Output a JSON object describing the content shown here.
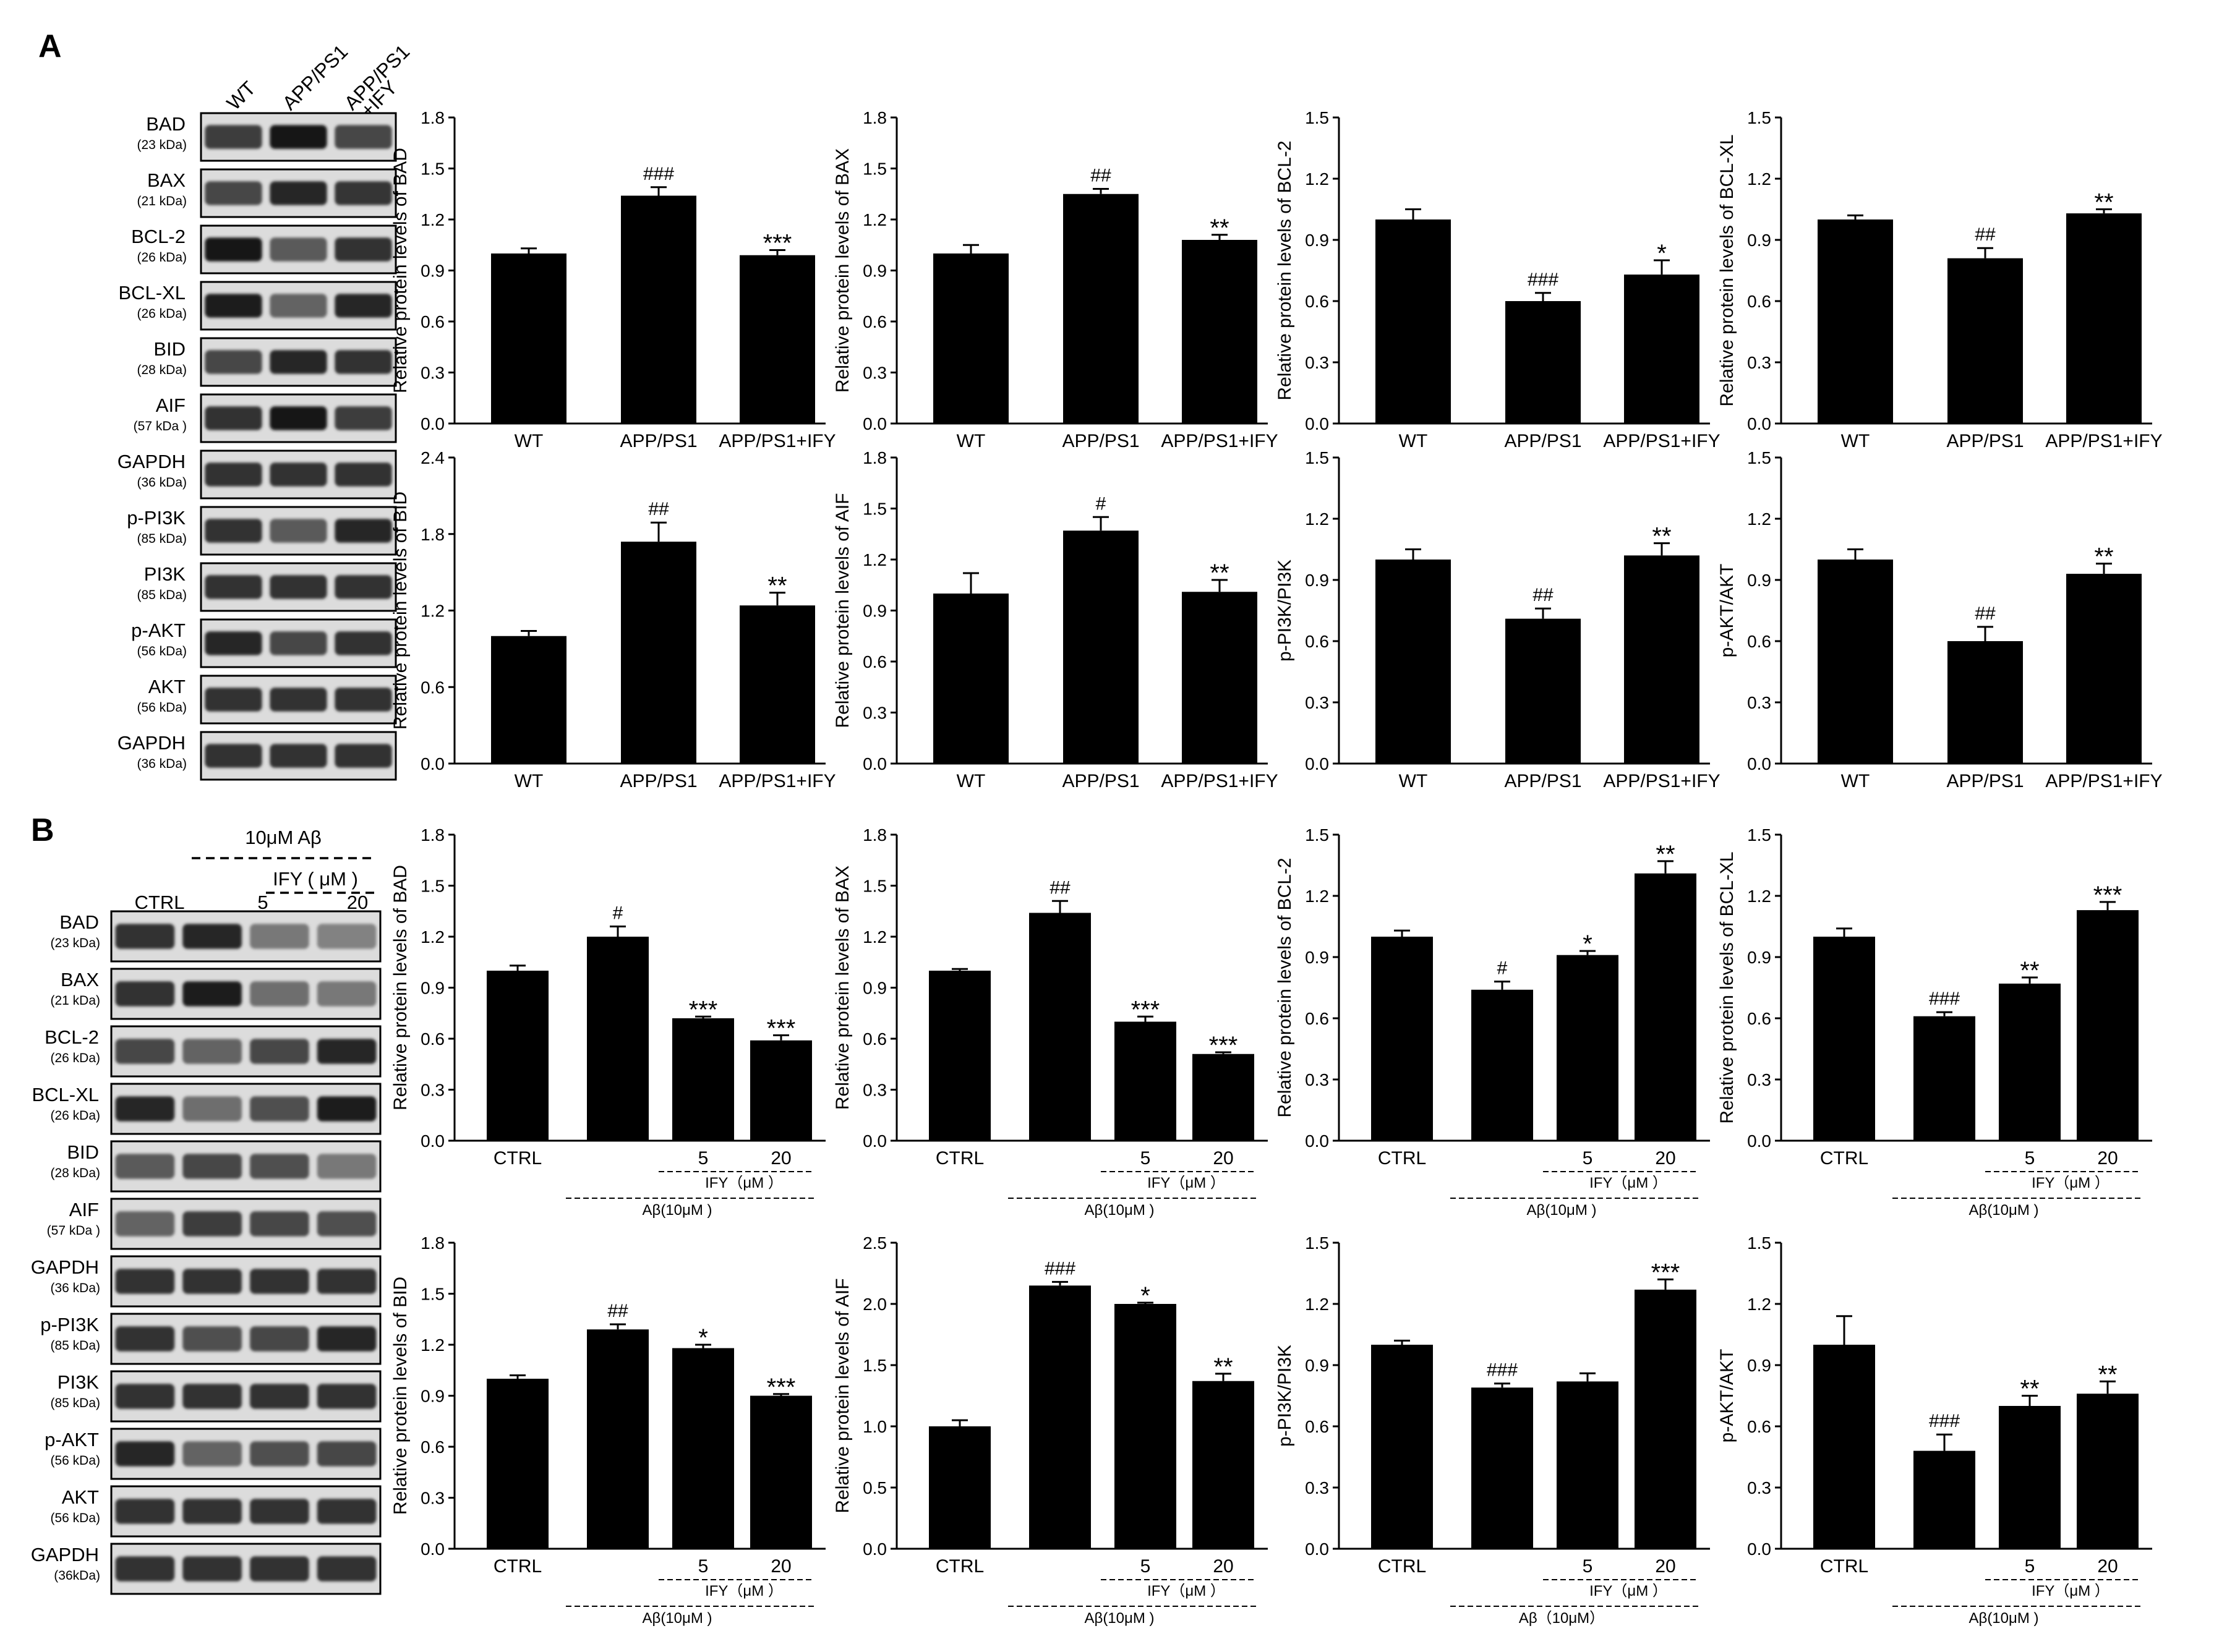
{
  "panels": {
    "A": {
      "letter": "A",
      "blot": {
        "lane_labels": [
          "WT",
          "APP/PS1",
          "APP/PS1\n+IFY"
        ],
        "rows": [
          {
            "name": "BAD",
            "kda": "(23 kDa)",
            "intensities": [
              0.75,
              0.95,
              0.7
            ]
          },
          {
            "name": "BAX",
            "kda": "(21 kDa)",
            "intensities": [
              0.7,
              0.85,
              0.78
            ]
          },
          {
            "name": "BCL-2",
            "kda": "(26 kDa)",
            "intensities": [
              0.95,
              0.6,
              0.8
            ]
          },
          {
            "name": "BCL-XL",
            "kda": "(26 kDa)",
            "intensities": [
              0.9,
              0.55,
              0.85
            ]
          },
          {
            "name": "BID",
            "kda": "(28 kDa)",
            "intensities": [
              0.7,
              0.85,
              0.8
            ]
          },
          {
            "name": "AIF",
            "kda": "(57 kDa )",
            "intensities": [
              0.8,
              0.95,
              0.75
            ]
          },
          {
            "name": "GAPDH",
            "kda": "(36 kDa)",
            "intensities": [
              0.8,
              0.8,
              0.8
            ]
          },
          {
            "name": "p-PI3K",
            "kda": "(85 kDa)",
            "intensities": [
              0.8,
              0.6,
              0.85
            ]
          },
          {
            "name": "PI3K",
            "kda": "(85 kDa)",
            "intensities": [
              0.8,
              0.8,
              0.8
            ]
          },
          {
            "name": "p-AKT",
            "kda": "(56 kDa)",
            "intensities": [
              0.85,
              0.7,
              0.8
            ]
          },
          {
            "name": "AKT",
            "kda": "(56 kDa)",
            "intensities": [
              0.8,
              0.8,
              0.8
            ]
          },
          {
            "name": "GAPDH",
            "kda": "(36 kDa)",
            "intensities": [
              0.8,
              0.8,
              0.8
            ]
          }
        ]
      }
    },
    "B": {
      "letter": "B",
      "blot": {
        "treatment_label": "10μM Aβ",
        "ify_label": "IFY ( μM )",
        "lane_labels": [
          "CTRL",
          "",
          "5",
          "20"
        ],
        "rows": [
          {
            "name": "BAD",
            "kda": "(23 kDa)",
            "intensities": [
              0.8,
              0.85,
              0.45,
              0.4
            ]
          },
          {
            "name": "BAX",
            "kda": "(21 kDa)",
            "intensities": [
              0.8,
              0.9,
              0.5,
              0.45
            ]
          },
          {
            "name": "BCL-2",
            "kda": "(26 kDa)",
            "intensities": [
              0.7,
              0.55,
              0.7,
              0.85
            ]
          },
          {
            "name": "BCL-XL",
            "kda": "(26 kDa)",
            "intensities": [
              0.85,
              0.5,
              0.65,
              0.9
            ]
          },
          {
            "name": "BID",
            "kda": "(28 kDa)",
            "intensities": [
              0.6,
              0.7,
              0.65,
              0.45
            ]
          },
          {
            "name": "AIF",
            "kda": "(57 kDa )",
            "intensities": [
              0.55,
              0.75,
              0.7,
              0.65
            ]
          },
          {
            "name": "GAPDH",
            "kda": "(36 kDa)",
            "intensities": [
              0.8,
              0.8,
              0.8,
              0.8
            ]
          },
          {
            "name": "p-PI3K",
            "kda": "(85 kDa)",
            "intensities": [
              0.8,
              0.65,
              0.7,
              0.85
            ]
          },
          {
            "name": "PI3K",
            "kda": "(85 kDa)",
            "intensities": [
              0.8,
              0.8,
              0.8,
              0.8
            ]
          },
          {
            "name": "p-AKT",
            "kda": "(56 kDa)",
            "intensities": [
              0.85,
              0.55,
              0.65,
              0.7
            ]
          },
          {
            "name": "AKT",
            "kda": "(56 kDa)",
            "intensities": [
              0.8,
              0.8,
              0.8,
              0.8
            ]
          },
          {
            "name": "GAPDH",
            "kda": "(36kDa)",
            "intensities": [
              0.8,
              0.8,
              0.8,
              0.8
            ]
          }
        ]
      }
    }
  },
  "chart_data": [
    {
      "panel": "A",
      "type": "bar",
      "categories": [
        "WT",
        "APP/PS1",
        "APP/PS1+IFY"
      ],
      "values": [
        1.0,
        1.34,
        0.99
      ],
      "errors": [
        0.03,
        0.05,
        0.03
      ],
      "annotations": [
        "",
        "###",
        "***"
      ],
      "ylabel": "Relative protein levels of BAD",
      "ylim": [
        0,
        1.8
      ],
      "ticks": [
        "0.0",
        "0.3",
        "0.6",
        "0.9",
        "1.2",
        "1.5",
        "1.8"
      ]
    },
    {
      "panel": "A",
      "type": "bar",
      "categories": [
        "WT",
        "APP/PS1",
        "APP/PS1+IFY"
      ],
      "values": [
        1.0,
        1.35,
        1.08
      ],
      "errors": [
        0.05,
        0.03,
        0.03
      ],
      "annotations": [
        "",
        "##",
        "**"
      ],
      "ylabel": "Relative protein levels of BAX",
      "ylim": [
        0,
        1.8
      ],
      "ticks": [
        "0.0",
        "0.3",
        "0.6",
        "0.9",
        "1.2",
        "1.5",
        "1.8"
      ]
    },
    {
      "panel": "A",
      "type": "bar",
      "categories": [
        "WT",
        "APP/PS1",
        "APP/PS1+IFY"
      ],
      "values": [
        1.0,
        0.6,
        0.73
      ],
      "errors": [
        0.05,
        0.04,
        0.07
      ],
      "annotations": [
        "",
        "###",
        "*"
      ],
      "ylabel": "Relative protein levels of BCL-2",
      "ylim": [
        0,
        1.5
      ],
      "ticks": [
        "0.0",
        "0.3",
        "0.6",
        "0.9",
        "1.2",
        "1.5"
      ]
    },
    {
      "panel": "A",
      "type": "bar",
      "categories": [
        "WT",
        "APP/PS1",
        "APP/PS1+IFY"
      ],
      "values": [
        1.0,
        0.81,
        1.03
      ],
      "errors": [
        0.02,
        0.05,
        0.02
      ],
      "annotations": [
        "",
        "##",
        "**"
      ],
      "ylabel": "Relative protein levels of BCL-XL",
      "ylim": [
        0,
        1.5
      ],
      "ticks": [
        "0.0",
        "0.3",
        "0.6",
        "0.9",
        "1.2",
        "1.5"
      ]
    },
    {
      "panel": "A",
      "type": "bar",
      "categories": [
        "WT",
        "APP/PS1",
        "APP/PS1+IFY"
      ],
      "values": [
        1.0,
        1.74,
        1.24
      ],
      "errors": [
        0.04,
        0.15,
        0.1
      ],
      "annotations": [
        "",
        "##",
        "**"
      ],
      "ylabel": "Relative protein levels of BID",
      "ylim": [
        0,
        2.4
      ],
      "ticks": [
        "0.0",
        "0.6",
        "1.2",
        "1.8",
        "2.4"
      ]
    },
    {
      "panel": "A",
      "type": "bar",
      "categories": [
        "WT",
        "APP/PS1",
        "APP/PS1+IFY"
      ],
      "values": [
        1.0,
        1.37,
        1.01
      ],
      "errors": [
        0.12,
        0.08,
        0.07
      ],
      "annotations": [
        "",
        "#",
        "**"
      ],
      "ylabel": "Relative protein levels of AIF",
      "ylim": [
        0,
        1.8
      ],
      "ticks": [
        "0.0",
        "0.3",
        "0.6",
        "0.9",
        "1.2",
        "1.5",
        "1.8"
      ]
    },
    {
      "panel": "A",
      "type": "bar",
      "categories": [
        "WT",
        "APP/PS1",
        "APP/PS1+IFY"
      ],
      "values": [
        1.0,
        0.71,
        1.02
      ],
      "errors": [
        0.05,
        0.05,
        0.06
      ],
      "annotations": [
        "",
        "##",
        "**"
      ],
      "ylabel": "p-PI3K/PI3K",
      "ylim": [
        0,
        1.5
      ],
      "ticks": [
        "0.0",
        "0.3",
        "0.6",
        "0.9",
        "1.2",
        "1.5"
      ]
    },
    {
      "panel": "A",
      "type": "bar",
      "categories": [
        "WT",
        "APP/PS1",
        "APP/PS1+IFY"
      ],
      "values": [
        1.0,
        0.6,
        0.93
      ],
      "errors": [
        0.05,
        0.07,
        0.05
      ],
      "annotations": [
        "",
        "##",
        "**"
      ],
      "ylabel": "p-AKT/AKT",
      "ylim": [
        0,
        1.5
      ],
      "ticks": [
        "0.0",
        "0.3",
        "0.6",
        "0.9",
        "1.2",
        "1.5"
      ]
    },
    {
      "panel": "B",
      "type": "bar",
      "categories": [
        "CTRL",
        "",
        "5",
        "20"
      ],
      "group_labels": {
        "ify": "IFY（μM ）",
        "abeta": "Aβ(10μM )"
      },
      "values": [
        1.0,
        1.2,
        0.72,
        0.59
      ],
      "errors": [
        0.03,
        0.06,
        0.01,
        0.03
      ],
      "annotations": [
        "",
        "#",
        "***",
        "***"
      ],
      "ylabel": "Relative protein levels of BAD",
      "ylim": [
        0,
        1.8
      ],
      "ticks": [
        "0.0",
        "0.3",
        "0.6",
        "0.9",
        "1.2",
        "1.5",
        "1.8"
      ]
    },
    {
      "panel": "B",
      "type": "bar",
      "categories": [
        "CTRL",
        "",
        "5",
        "20"
      ],
      "group_labels": {
        "ify": "IFY（μM ）",
        "abeta": "Aβ(10μM )"
      },
      "values": [
        1.0,
        1.34,
        0.7,
        0.51
      ],
      "errors": [
        0.01,
        0.07,
        0.03,
        0.01
      ],
      "annotations": [
        "",
        "##",
        "***",
        "***"
      ],
      "ylabel": "Relative protein levels of BAX",
      "ylim": [
        0,
        1.8
      ],
      "ticks": [
        "0.0",
        "0.3",
        "0.6",
        "0.9",
        "1.2",
        "1.5",
        "1.8"
      ]
    },
    {
      "panel": "B",
      "type": "bar",
      "categories": [
        "CTRL",
        "",
        "5",
        "20"
      ],
      "group_labels": {
        "ify": "IFY（μM ）",
        "abeta": "Aβ(10μM )"
      },
      "values": [
        1.0,
        0.74,
        0.91,
        1.31
      ],
      "errors": [
        0.03,
        0.04,
        0.02,
        0.06
      ],
      "annotations": [
        "",
        "#",
        "*",
        "**"
      ],
      "ylabel": "Relative protein levels of BCL-2",
      "ylim": [
        0,
        1.5
      ],
      "ticks": [
        "0.0",
        "0.3",
        "0.6",
        "0.9",
        "1.2",
        "1.5"
      ]
    },
    {
      "panel": "B",
      "type": "bar",
      "categories": [
        "CTRL",
        "",
        "5",
        "20"
      ],
      "group_labels": {
        "ify": "IFY（μM ）",
        "abeta": "Aβ(10μM )"
      },
      "values": [
        1.0,
        0.61,
        0.77,
        1.13
      ],
      "errors": [
        0.04,
        0.02,
        0.03,
        0.04
      ],
      "annotations": [
        "",
        "###",
        "**",
        "***"
      ],
      "ylabel": "Relative protein levels of BCL-XL",
      "ylim": [
        0,
        1.5
      ],
      "ticks": [
        "0.0",
        "0.3",
        "0.6",
        "0.9",
        "1.2",
        "1.5"
      ]
    },
    {
      "panel": "B",
      "type": "bar",
      "categories": [
        "CTRL",
        "",
        "5",
        "20"
      ],
      "group_labels": {
        "ify": "IFY（μM ）",
        "abeta": "Aβ(10μM )"
      },
      "values": [
        1.0,
        1.29,
        1.18,
        0.9
      ],
      "errors": [
        0.02,
        0.03,
        0.02,
        0.01
      ],
      "annotations": [
        "",
        "##",
        "*",
        "***"
      ],
      "ylabel": "Relative protein levels of BID",
      "ylim": [
        0,
        1.8
      ],
      "ticks": [
        "0.0",
        "0.3",
        "0.6",
        "0.9",
        "1.2",
        "1.5",
        "1.8"
      ]
    },
    {
      "panel": "B",
      "type": "bar",
      "categories": [
        "CTRL",
        "",
        "5",
        "20"
      ],
      "group_labels": {
        "ify": "IFY（μM ）",
        "abeta": "Aβ(10μM )"
      },
      "values": [
        1.0,
        2.15,
        2.0,
        1.37
      ],
      "errors": [
        0.05,
        0.03,
        0.01,
        0.06
      ],
      "annotations": [
        "",
        "###",
        "*",
        "**"
      ],
      "ylabel": "Relative protein levels of AIF",
      "ylim": [
        0,
        2.5
      ],
      "ticks": [
        "0.0",
        "0.5",
        "1.0",
        "1.5",
        "2.0",
        "2.5"
      ]
    },
    {
      "panel": "B",
      "type": "bar",
      "categories": [
        "CTRL",
        "",
        "5",
        "20"
      ],
      "group_labels": {
        "ify": "IFY（μM ）",
        "abeta": "Aβ（10μM）"
      },
      "values": [
        1.0,
        0.79,
        0.82,
        1.27
      ],
      "errors": [
        0.02,
        0.02,
        0.04,
        0.05
      ],
      "annotations": [
        "",
        "###",
        "",
        "***"
      ],
      "ylabel": "p-PI3K/PI3K",
      "ylim": [
        0,
        1.5
      ],
      "ticks": [
        "0.0",
        "0.3",
        "0.6",
        "0.9",
        "1.2",
        "1.5"
      ]
    },
    {
      "panel": "B",
      "type": "bar",
      "categories": [
        "CTRL",
        "",
        "5",
        "20"
      ],
      "group_labels": {
        "ify": "IFY（μM ）",
        "abeta": "Aβ(10μM )"
      },
      "values": [
        1.0,
        0.48,
        0.7,
        0.76
      ],
      "errors": [
        0.14,
        0.08,
        0.05,
        0.06
      ],
      "annotations": [
        "",
        "###",
        "**",
        "**"
      ],
      "ylabel": "p-AKT/AKT",
      "ylim": [
        0,
        1.5
      ],
      "ticks": [
        "0.0",
        "0.3",
        "0.6",
        "0.9",
        "1.2",
        "1.5"
      ]
    }
  ]
}
